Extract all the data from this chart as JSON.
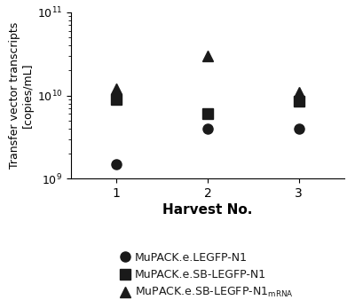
{
  "series": [
    {
      "label": "MuPACK.e.LEGFP-N1",
      "marker": "o",
      "x": [
        1,
        2,
        3
      ],
      "y": [
        1500000000.0,
        4000000000.0,
        4000000000.0
      ]
    },
    {
      "label": "MuPACK.e.SB-LEGFP-N1",
      "marker": "s",
      "x": [
        1,
        2,
        3
      ],
      "y": [
        9000000000.0,
        6000000000.0,
        8500000000.0
      ]
    },
    {
      "label": "MuPACK.e.SB-LEGFP-N1$_\\mathregular{mRNA}$",
      "marker": "^",
      "x": [
        1,
        2,
        3
      ],
      "y": [
        12000000000.0,
        30000000000.0,
        11000000000.0
      ]
    }
  ],
  "ylabel_line1": "Transfer vector transcripts",
  "ylabel_line2": "[copies/mL]",
  "xlabel": "Harvest No.",
  "ylim": [
    1000000000.0,
    100000000000.0
  ],
  "xlim": [
    0.5,
    3.5
  ],
  "xticks": [
    1,
    2,
    3
  ],
  "color": "#1a1a1a",
  "markersize": 8
}
